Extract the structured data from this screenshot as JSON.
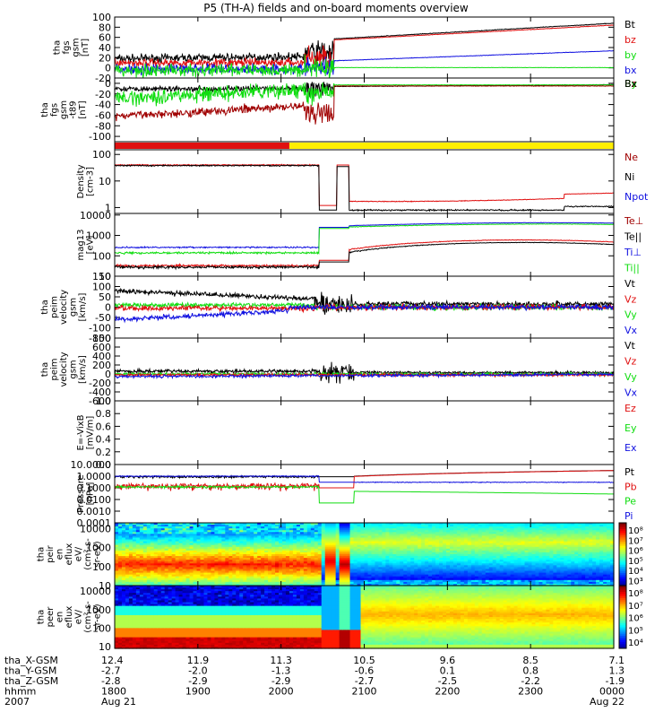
{
  "title": "P5 (TH-A) fields and on-board moments overview",
  "colors": {
    "black": "#000000",
    "red": "#e01010",
    "darkred": "#a00000",
    "green": "#10dd10",
    "blue": "#1010e0",
    "yellow": "#ffee00"
  },
  "chart_data": [
    {
      "id": "fgs",
      "type": "line",
      "ylabel": [
        "tha",
        "fgs",
        "gsm",
        "[nT]"
      ],
      "ylim": [
        -20,
        100
      ],
      "yticks": [
        "100",
        "80",
        "60",
        "40",
        "20",
        "0",
        "-20"
      ],
      "legend": [
        {
          "text": "Bt",
          "color": "black"
        },
        {
          "text": "bz",
          "color": "red"
        },
        {
          "text": "by",
          "color": "green"
        },
        {
          "text": "bx",
          "color": "blue"
        }
      ]
    },
    {
      "id": "fgsthg",
      "type": "line",
      "ylabel": [
        "tha",
        "fgs",
        "gsm",
        "-t89",
        "[nT]"
      ],
      "ylim": [
        -110,
        10
      ],
      "yticks": [
        "0",
        "-20",
        "-40",
        "-60",
        "-80",
        "-100"
      ],
      "legend": [
        {
          "text": "Bz",
          "color": "darkred"
        },
        {
          "text": "By",
          "color": "green"
        },
        {
          "text": "Bx",
          "color": "black"
        }
      ]
    },
    {
      "id": "mode",
      "type": "bar",
      "segments": [
        {
          "x0": 0,
          "x1": 0.35,
          "color": "red"
        },
        {
          "x0": 0.35,
          "x1": 1.0,
          "color": "yellow"
        }
      ]
    },
    {
      "id": "density",
      "type": "line",
      "scale": "log",
      "ylabel": [
        "Density",
        "[cm-3]"
      ],
      "ylim": [
        0.6,
        150
      ],
      "yticks": [
        "100",
        "10",
        "1"
      ],
      "legend": [
        {
          "text": "Ne",
          "color": "darkred"
        },
        {
          "text": "Ni",
          "color": "black"
        },
        {
          "text": "Npot",
          "color": "blue"
        }
      ]
    },
    {
      "id": "temp",
      "type": "line",
      "scale": "log",
      "ylabel": [
        "mag13",
        "[eV]"
      ],
      "ylim": [
        10,
        12000
      ],
      "yticks": [
        "10000",
        "1000",
        "100",
        "10"
      ],
      "legend": [
        {
          "text": "Te⊥",
          "color": "darkred"
        },
        {
          "text": "Te||",
          "color": "black"
        },
        {
          "text": "Ti⊥",
          "color": "blue"
        },
        {
          "text": "Ti||",
          "color": "green"
        }
      ]
    },
    {
      "id": "peimvel",
      "type": "line",
      "ylabel": [
        "tha",
        "peim",
        "velocity",
        "gsm",
        "[km/s]"
      ],
      "ylim": [
        -150,
        150
      ],
      "yticks": [
        "150",
        "100",
        "50",
        "0",
        "-50",
        "-100",
        "-150"
      ],
      "legend": [
        {
          "text": "Vt",
          "color": "black"
        },
        {
          "text": "Vz",
          "color": "red"
        },
        {
          "text": "Vy",
          "color": "green"
        },
        {
          "text": "Vx",
          "color": "blue"
        }
      ]
    },
    {
      "id": "peimvel2",
      "type": "line",
      "ylabel": [
        "tha",
        "peim",
        "velocity",
        "gsm",
        "[km/s]"
      ],
      "ylim": [
        -600,
        800
      ],
      "yticks": [
        "800",
        "600",
        "400",
        "200",
        "0",
        "-200",
        "-400",
        "-600"
      ],
      "legend": [
        {
          "text": "Vt",
          "color": "black"
        },
        {
          "text": "Vz",
          "color": "red"
        },
        {
          "text": "Vy",
          "color": "green"
        },
        {
          "text": "Vx",
          "color": "blue"
        }
      ]
    },
    {
      "id": "efield",
      "type": "line",
      "ylabel": [
        "E=-VixB",
        "[mV/m]"
      ],
      "ylim": [
        0,
        1
      ],
      "yticks": [
        "1.0",
        "0.8",
        "0.6",
        "0.4",
        "0.2",
        "0.0"
      ],
      "legend": [
        {
          "text": "Ez",
          "color": "red"
        },
        {
          "text": "Ey",
          "color": "green"
        },
        {
          "text": "Ex",
          "color": "blue"
        }
      ]
    },
    {
      "id": "pressure",
      "type": "line",
      "scale": "log",
      "ylabel": [
        "Pressure",
        "[nPa]"
      ],
      "ylim": [
        0.0001,
        10
      ],
      "yticks": [
        "10.0000",
        "1.0000",
        "0.1000",
        "0.0100",
        "0.0010",
        "0.0001"
      ],
      "legend": [
        {
          "text": "Pt",
          "color": "black"
        },
        {
          "text": "Pb",
          "color": "red"
        },
        {
          "text": "Pe",
          "color": "green"
        },
        {
          "text": "Pi",
          "color": "blue"
        }
      ]
    },
    {
      "id": "peir",
      "type": "heatmap",
      "scale": "log",
      "ylabel": [
        "tha",
        "peir",
        "en",
        "eflux",
        "eV/",
        "(cm^2-s-",
        "sr-eV)"
      ],
      "ylim": [
        10,
        20000
      ],
      "yticks": [
        "10000",
        "1000",
        "100",
        "10"
      ],
      "colorbar": [
        "10^8",
        "10^7",
        "10^6",
        "10^5",
        "10^4",
        "10^3"
      ]
    },
    {
      "id": "peer",
      "type": "heatmap",
      "scale": "log",
      "ylabel": [
        "tha",
        "peer",
        "en",
        "eflux",
        "eV/",
        "(cm^2-s-",
        "sr-eV)"
      ],
      "ylim": [
        8,
        20000
      ],
      "yticks": [
        "10000",
        "1000",
        "100",
        "10"
      ],
      "colorbar": [
        "10^8",
        "10^7",
        "10^6",
        "10^5",
        "10^4"
      ]
    }
  ],
  "xaxis": {
    "labels": [
      "tha_X-GSM",
      "tha_Y-GSM",
      "tha_Z-GSM",
      "hhmm",
      "2007"
    ],
    "ticks": [
      {
        "x": 0.0,
        "vals": [
          "12.4",
          "-2.7",
          "-2.8",
          "1800",
          "Aug 21"
        ]
      },
      {
        "x": 0.1667,
        "vals": [
          "11.9",
          "-2.0",
          "-2.9",
          "1900",
          ""
        ]
      },
      {
        "x": 0.3333,
        "vals": [
          "11.3",
          "-1.3",
          "-2.9",
          "2000",
          ""
        ]
      },
      {
        "x": 0.5,
        "vals": [
          "10.5",
          "-0.6",
          "-2.7",
          "2100",
          ""
        ]
      },
      {
        "x": 0.6667,
        "vals": [
          "9.6",
          "0.1",
          "-2.5",
          "2200",
          ""
        ]
      },
      {
        "x": 0.8333,
        "vals": [
          "8.5",
          "0.8",
          "-2.2",
          "2300",
          ""
        ]
      },
      {
        "x": 1.0,
        "vals": [
          "7.1",
          "1.3",
          "-1.9",
          "0000",
          "Aug 22"
        ]
      }
    ]
  }
}
